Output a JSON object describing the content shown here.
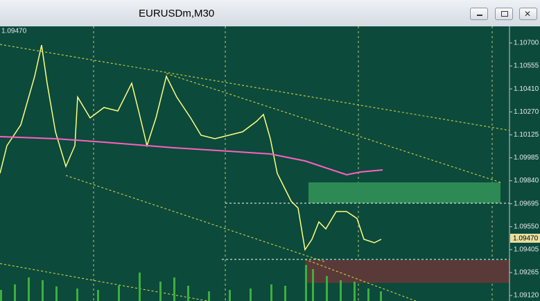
{
  "window": {
    "title": "EURUSDm,M30"
  },
  "chart": {
    "top_left_label": "1.09470",
    "price_axis": {
      "labels": [
        "1.10700",
        "1.10555",
        "1.10410",
        "1.10270",
        "1.10125",
        "1.09985",
        "1.09840",
        "1.09695",
        "1.09550",
        "1.09405",
        "1.09265",
        "1.09120"
      ]
    },
    "current_price": "1.09470"
  }
}
